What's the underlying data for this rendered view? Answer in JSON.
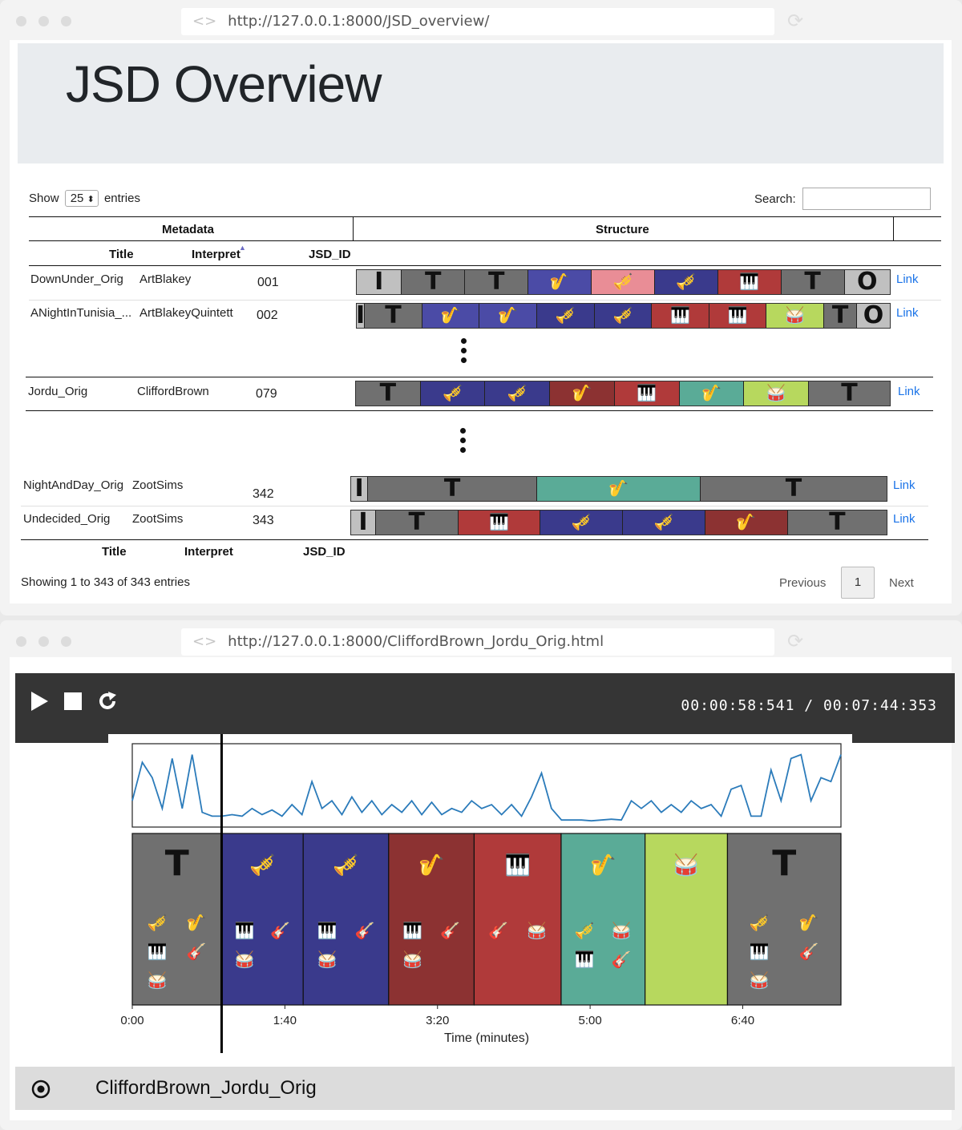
{
  "overview_window": {
    "url_icon": "<>",
    "url": "http://127.0.0.1:8000/JSD_overview/",
    "page_title": "JSD Overview",
    "show_prefix": "Show",
    "entries_value": "25",
    "show_suffix": "entries",
    "search_label": "Search:",
    "group_headers": [
      "Metadata",
      "Structure"
    ],
    "column_headers": [
      "Title",
      "Interpret",
      "JSD_ID"
    ],
    "link_label": "Link",
    "rows": [
      {
        "title": "DownUnder_Orig",
        "interpret": "ArtBlakey",
        "jsd_id": "001",
        "segments": [
          {
            "label": "I",
            "w": 0.05,
            "color": "#c0c0c0"
          },
          {
            "label": "T",
            "w": 0.07,
            "color": "#707070"
          },
          {
            "label": "T",
            "w": 0.07,
            "color": "#707070"
          },
          {
            "icon": "saxophone-icon",
            "w": 0.07,
            "color": "#4b4ba6"
          },
          {
            "icon": "trombone-icon",
            "w": 0.07,
            "color": "#e98d96"
          },
          {
            "icon": "trumpet-icon",
            "w": 0.07,
            "color": "#3a3a8c"
          },
          {
            "icon": "piano-icon",
            "w": 0.07,
            "color": "#b03a3a"
          },
          {
            "label": "T",
            "w": 0.07,
            "color": "#707070"
          },
          {
            "label": "O",
            "w": 0.05,
            "color": "#c0c0c0"
          }
        ]
      },
      {
        "title": "ANightInTunisia_...",
        "interpret": "ArtBlakeyQuintett",
        "jsd_id": "002",
        "segments": [
          {
            "label": "I",
            "w": 0.01,
            "color": "#c0c0c0"
          },
          {
            "label": "T",
            "w": 0.07,
            "color": "#707070"
          },
          {
            "icon": "saxophone-icon",
            "w": 0.07,
            "color": "#4b4ba6"
          },
          {
            "icon": "saxophone-icon",
            "w": 0.07,
            "color": "#4b4ba6"
          },
          {
            "icon": "trumpet-icon",
            "w": 0.07,
            "color": "#3a3a8c"
          },
          {
            "icon": "trumpet-icon",
            "w": 0.07,
            "color": "#3a3a8c"
          },
          {
            "icon": "piano-icon",
            "w": 0.07,
            "color": "#b03a3a"
          },
          {
            "icon": "piano-icon",
            "w": 0.07,
            "color": "#b03a3a"
          },
          {
            "icon": "drum-icon",
            "w": 0.07,
            "color": "#b7d85e"
          },
          {
            "label": "T",
            "w": 0.04,
            "color": "#707070"
          },
          {
            "label": "O",
            "w": 0.04,
            "color": "#c0c0c0"
          }
        ]
      },
      {
        "title": "Jordu_Orig",
        "interpret": "CliffordBrown",
        "jsd_id": "079",
        "segments": [
          {
            "label": "T",
            "w": 0.08,
            "color": "#707070"
          },
          {
            "icon": "trumpet-icon",
            "w": 0.08,
            "color": "#3a3a8c"
          },
          {
            "icon": "trumpet-icon",
            "w": 0.08,
            "color": "#3a3a8c"
          },
          {
            "icon": "saxophone-icon",
            "w": 0.08,
            "color": "#8c3232"
          },
          {
            "icon": "piano-icon",
            "w": 0.08,
            "color": "#b03a3a"
          },
          {
            "icon": "saxophone-icon",
            "w": 0.08,
            "color": "#5aab97"
          },
          {
            "icon": "drum-icon",
            "w": 0.08,
            "color": "#b7d85e"
          },
          {
            "label": "T",
            "w": 0.1,
            "color": "#707070"
          }
        ]
      },
      {
        "title": "NightAndDay_Orig",
        "interpret": "ZootSims",
        "jsd_id": "342",
        "segments": [
          {
            "label": "I",
            "w": 0.03,
            "color": "#c0c0c0"
          },
          {
            "label": "T",
            "w": 0.3,
            "color": "#707070"
          },
          {
            "icon": "saxophone-icon",
            "w": 0.29,
            "color": "#5aab97"
          },
          {
            "label": "T",
            "w": 0.33,
            "color": "#707070"
          }
        ]
      },
      {
        "title": "Undecided_Orig",
        "interpret": "ZootSims",
        "jsd_id": "343",
        "segments": [
          {
            "label": "I",
            "w": 0.03,
            "color": "#c0c0c0"
          },
          {
            "label": "T",
            "w": 0.1,
            "color": "#707070"
          },
          {
            "icon": "piano-icon",
            "w": 0.1,
            "color": "#b03a3a"
          },
          {
            "icon": "trumpet-icon",
            "w": 0.1,
            "color": "#3a3a8c"
          },
          {
            "icon": "trumpet-icon",
            "w": 0.1,
            "color": "#3a3a8c"
          },
          {
            "icon": "saxophone-icon",
            "w": 0.1,
            "color": "#8c3232"
          },
          {
            "label": "T",
            "w": 0.12,
            "color": "#707070"
          }
        ]
      }
    ],
    "info_text": "Showing 1 to 343 of 343 entries",
    "pagination": {
      "previous": "Previous",
      "page": "1",
      "next": "Next"
    }
  },
  "player_window": {
    "url_icon": "<>",
    "url": "http://127.0.0.1:8000/CliffordBrown_Jordu_Orig.html",
    "time_display": "00:00:58:541 / 00:07:44:353",
    "track_name": "CliffordBrown_Jordu_Orig",
    "chart_data": {
      "type": "area",
      "xlabel": "Time (minutes)",
      "x_ticks": [
        {
          "label": "0:00",
          "seconds": 0
        },
        {
          "label": "1:40",
          "seconds": 100
        },
        {
          "label": "3:20",
          "seconds": 200
        },
        {
          "label": "5:00",
          "seconds": 300
        },
        {
          "label": "6:40",
          "seconds": 400
        }
      ],
      "xlim": [
        0,
        464.353
      ],
      "playhead_seconds": 58.541,
      "envelope": [
        0.3,
        0.8,
        0.6,
        0.2,
        0.85,
        0.2,
        0.9,
        0.15,
        0.1,
        0.1,
        0.12,
        0.1,
        0.2,
        0.12,
        0.18,
        0.1,
        0.25,
        0.12,
        0.55,
        0.2,
        0.3,
        0.12,
        0.35,
        0.15,
        0.3,
        0.12,
        0.25,
        0.15,
        0.3,
        0.12,
        0.28,
        0.12,
        0.2,
        0.15,
        0.3,
        0.2,
        0.25,
        0.12,
        0.25,
        0.1,
        0.35,
        0.66,
        0.2,
        0.05,
        0.05,
        0.05,
        0.04,
        0.05,
        0.06,
        0.05,
        0.3,
        0.2,
        0.3,
        0.15,
        0.25,
        0.15,
        0.3,
        0.2,
        0.25,
        0.1,
        0.45,
        0.5,
        0.1,
        0.1,
        0.7,
        0.3,
        0.85,
        0.9,
        0.3,
        0.6,
        0.55,
        0.9
      ],
      "sections": [
        {
          "start": 0,
          "end": 58.541,
          "color": "#707070",
          "label": "T",
          "icons": [
            "trumpet-icon",
            "saxophone-icon",
            "piano-icon",
            "guitar-icon",
            "drum-icon"
          ]
        },
        {
          "start": 58.541,
          "end": 112,
          "color": "#3a3a8c",
          "icons": [
            "trumpet-icon",
            "piano-icon",
            "guitar-icon",
            "drum-icon"
          ]
        },
        {
          "start": 112,
          "end": 168,
          "color": "#3a3a8c",
          "icons": [
            "trumpet-icon",
            "piano-icon",
            "guitar-icon",
            "drum-icon"
          ]
        },
        {
          "start": 168,
          "end": 224,
          "color": "#8c3232",
          "icons": [
            "saxophone-icon",
            "piano-icon",
            "guitar-icon",
            "drum-icon"
          ]
        },
        {
          "start": 224,
          "end": 281,
          "color": "#b03a3a",
          "icons": [
            "piano-icon",
            "guitar-icon",
            "drum-icon"
          ]
        },
        {
          "start": 281,
          "end": 336,
          "color": "#5aab97",
          "icons": [
            "saxophone-icon",
            "trumpet-icon",
            "drum-icon",
            "piano-icon",
            "guitar-icon"
          ]
        },
        {
          "start": 336,
          "end": 390,
          "color": "#b7d85e",
          "icons": [
            "drum-icon"
          ]
        },
        {
          "start": 390,
          "end": 464.353,
          "color": "#707070",
          "label": "T",
          "icons": [
            "trumpet-icon",
            "saxophone-icon",
            "piano-icon",
            "guitar-icon",
            "drum-icon"
          ]
        }
      ]
    }
  },
  "icon_glyphs": {
    "saxophone-icon": "🎷",
    "trumpet-icon": "🎺",
    "trombone-icon": "🎺",
    "piano-icon": "🎹",
    "drum-icon": "🥁",
    "guitar-icon": "🎸"
  }
}
